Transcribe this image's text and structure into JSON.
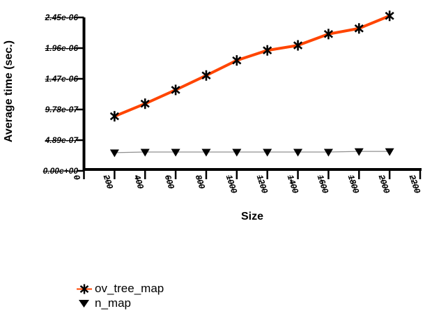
{
  "figure": {
    "background": "#ffffff",
    "axis_color": "#000000",
    "tick_label_style": "bold italic line-through"
  },
  "chart_data": {
    "type": "line",
    "title": "",
    "xlabel": "Size",
    "ylabel": "Average time (sec.)",
    "x": [
      200,
      400,
      600,
      800,
      1000,
      1200,
      1400,
      1600,
      1800,
      2000
    ],
    "series": [
      {
        "name": "ov_tree_map",
        "color": "#ff4500",
        "marker": "asterisk",
        "marker_color": "#000000",
        "line_width": 4,
        "values": [
          8.7e-07,
          1.07e-06,
          1.29e-06,
          1.52e-06,
          1.76e-06,
          1.92e-06,
          2e-06,
          2.18e-06,
          2.27e-06,
          2.47e-06
        ]
      },
      {
        "name": "n_map",
        "color": "#909090",
        "marker": "triangle-down",
        "marker_color": "#000000",
        "line_width": 1,
        "values": [
          2.9e-07,
          3e-07,
          3e-07,
          3e-07,
          3e-07,
          3e-07,
          3e-07,
          3e-07,
          3.1e-07,
          3.1e-07
        ]
      }
    ],
    "x_ticks": {
      "values": [
        0,
        200,
        400,
        600,
        800,
        1000,
        1200,
        1400,
        1600,
        1800,
        2000,
        2200
      ],
      "labels": [
        "0",
        "200",
        "400",
        "600",
        "800",
        "1000",
        "1200",
        "1400",
        "1600",
        "1800",
        "2000",
        "2200"
      ],
      "rotated": true
    },
    "y_ticks": {
      "values": [
        0,
        4.89e-07,
        9.78e-07,
        1.467e-06,
        1.956e-06,
        2.445e-06
      ],
      "labels": [
        "0.00e+00",
        "4.89e-07",
        "9.78e-07",
        "1.47e-06",
        "1.96e-06",
        "2.45e-06"
      ]
    },
    "xlim": [
      0,
      2200
    ],
    "ylim": [
      0,
      2.445e-06
    ],
    "grid": false,
    "legend_position": "bottom-left"
  }
}
